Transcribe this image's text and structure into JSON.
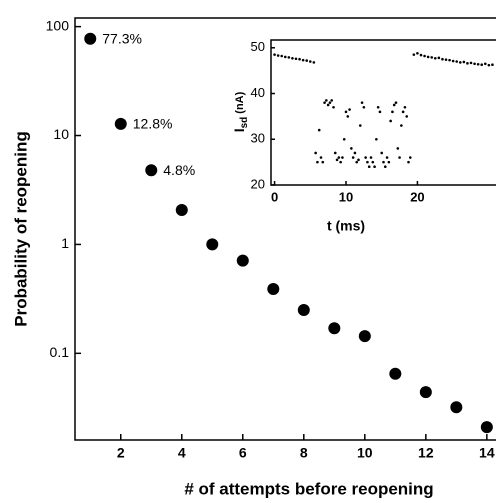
{
  "chart_data": [
    {
      "type": "scatter",
      "xlabel": "# of attempts before reopening",
      "ylabel": "Probability of reopening",
      "x": [
        1,
        2,
        3,
        4,
        5,
        6,
        7,
        8,
        9,
        10,
        11,
        12,
        13,
        14
      ],
      "values": [
        77.3,
        12.8,
        4.8,
        2.07,
        1.0,
        0.71,
        0.39,
        0.25,
        0.17,
        0.144,
        0.065,
        0.044,
        0.032,
        0.021
      ],
      "value_labels": [
        "77.3%",
        "12.8%",
        "4.8%",
        null,
        null,
        null,
        null,
        null,
        null,
        null,
        null,
        null,
        null,
        null
      ],
      "color": "#000000",
      "log_y": true,
      "xlim": [
        0.5,
        14.3
      ],
      "ylim": [
        0.016,
        120
      ],
      "xticks": [
        2,
        4,
        6,
        8,
        10,
        12,
        14
      ],
      "yticks": [
        0.1,
        1,
        10,
        100
      ]
    },
    {
      "type": "scatter",
      "xlabel": "t (ms)",
      "ylabel": {
        "symbol": "I",
        "subscript": "sd",
        "unit": "(nA)"
      },
      "x": [
        0,
        0.5,
        1,
        1.5,
        2,
        2.5,
        3,
        3.5,
        4,
        4.5,
        5,
        5.5,
        5.75,
        6,
        6.25,
        6.5,
        6.75,
        7,
        7.25,
        7.5,
        7.75,
        8,
        8.25,
        8.5,
        8.75,
        9,
        9.25,
        9.5,
        9.75,
        10,
        10.25,
        10.5,
        10.75,
        11,
        11.25,
        11.5,
        11.75,
        12,
        12.25,
        12.5,
        12.75,
        13,
        13.25,
        13.5,
        13.75,
        14,
        14.25,
        14.5,
        14.75,
        15,
        15.25,
        15.5,
        15.75,
        16,
        16.25,
        16.5,
        16.75,
        17,
        17.25,
        17.5,
        17.75,
        18,
        18.25,
        18.5,
        18.75,
        19,
        19.5,
        20,
        20.5,
        21,
        21.5,
        22,
        22.5,
        23,
        23.5,
        24,
        24.5,
        25,
        25.5,
        26,
        26.5,
        27,
        27.5,
        28,
        28.5,
        29,
        29.5,
        30,
        30.5
      ],
      "values": [
        48.5,
        48.3,
        48.2,
        48,
        47.9,
        47.7,
        47.6,
        47.5,
        47.3,
        47.2,
        47.0,
        46.8,
        27,
        25,
        32,
        26,
        25,
        38,
        38.5,
        37.5,
        38,
        38.5,
        37,
        27,
        25.5,
        26,
        25,
        26,
        30,
        36,
        35,
        36.5,
        28,
        26,
        27,
        25,
        25.5,
        33,
        38,
        37,
        26,
        25,
        24,
        26,
        25,
        24,
        30,
        37,
        36,
        27,
        25,
        24,
        26,
        25,
        34,
        36,
        37.5,
        38,
        28,
        26,
        33,
        36,
        37,
        35,
        25,
        26,
        48.5,
        48.8,
        48.4,
        48.2,
        48,
        47.9,
        47.7,
        47.8,
        47.5,
        47.4,
        47.3,
        47.1,
        47,
        46.8,
        46.9,
        46.6,
        46.7,
        46.5,
        46.4,
        46.3,
        46.5,
        46.2,
        46.3
      ],
      "color": "#000000",
      "xlim": [
        -0.5,
        31
      ],
      "ylim": [
        20,
        51.7
      ],
      "xticks": [
        0,
        10,
        20
      ],
      "yticks": [
        20,
        30,
        40,
        50
      ]
    }
  ]
}
